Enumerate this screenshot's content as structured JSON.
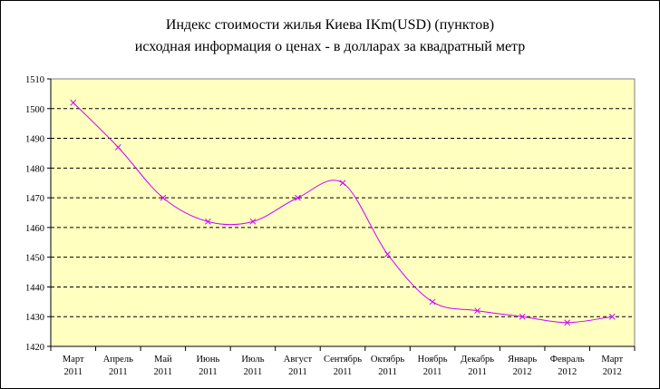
{
  "chart_data": {
    "type": "line",
    "title": "Индекс стоимости жилья Киева  IKm(USD)  (пунктов)",
    "subtitle": "исходная  информация о ценах -  в долларах за квадратный метр",
    "categories": [
      [
        "Март",
        "2011"
      ],
      [
        "Апрель",
        "2011"
      ],
      [
        "Май",
        "2011"
      ],
      [
        "Июнь",
        "2011"
      ],
      [
        "Июль",
        "2011"
      ],
      [
        "Август",
        "2011"
      ],
      [
        "Сентябрь",
        "2011"
      ],
      [
        "Октябрь",
        "2011"
      ],
      [
        "Ноябрь",
        "2011"
      ],
      [
        "Декабрь",
        "2011"
      ],
      [
        "Январь",
        "2012"
      ],
      [
        "Февраль",
        "2012"
      ],
      [
        "Март",
        "2012"
      ]
    ],
    "values": [
      1502,
      1487,
      1470,
      1462,
      1462,
      1470,
      1475,
      1451,
      1435,
      1432,
      1430,
      1428,
      1430
    ],
    "ylim": [
      1420,
      1510
    ],
    "yticks": [
      "1420",
      "1430",
      "1440",
      "1450",
      "1460",
      "1470",
      "1480",
      "1490",
      "1500",
      "1510"
    ],
    "grid": "horizontal dashed",
    "legend": "none",
    "colors": {
      "plot_background": "#ffffc0",
      "line": "#cc00ff",
      "marker": "#cc00ff",
      "gridline": "#000000"
    }
  }
}
